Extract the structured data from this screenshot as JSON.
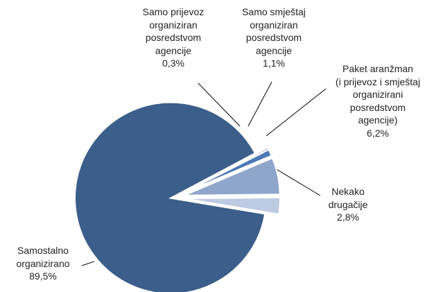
{
  "chart_data": {
    "type": "pie",
    "categories": [
      "Samostalno\norganizirano",
      "Samo prijevoz\norganiziran\nposredstvom\nagencije",
      "Samo smještaj\norganiziran\nposredstvom\nagencije",
      "Paket aranžman\n(i prijevoz i smještaj\norganizirani\nposredstvom\nagencije)",
      "Nekako\ndrugačije"
    ],
    "values": [
      89.5,
      0.3,
      1.1,
      6.2,
      2.8
    ],
    "value_labels": [
      "89,5%",
      "0,3%",
      "1,1%",
      "6,2%",
      "2,8%"
    ],
    "colors": [
      "#3b5e8a",
      "#3f679a",
      "#4d79b3",
      "#8fa6cb",
      "#bccbe2"
    ]
  }
}
